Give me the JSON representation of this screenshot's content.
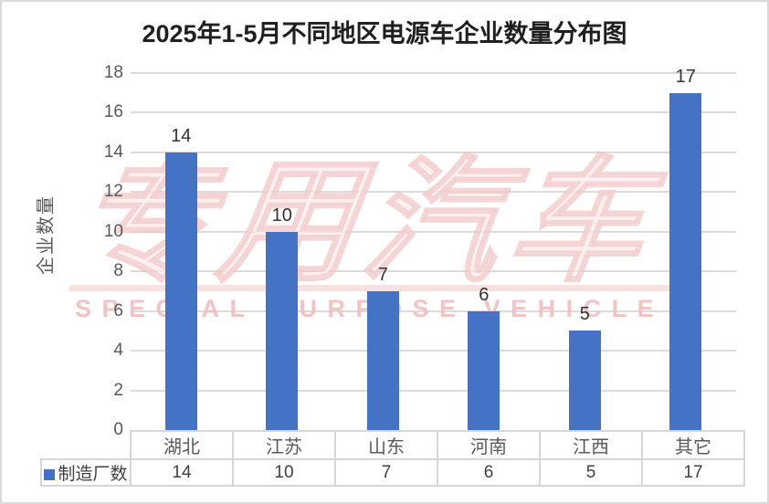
{
  "chart_data": {
    "type": "bar",
    "title": "2025年1-5月不同地区电源车企业数量分布图",
    "categories": [
      "湖北",
      "江苏",
      "山东",
      "河南",
      "江西",
      "其它"
    ],
    "series": [
      {
        "name": "制造厂数",
        "values": [
          14,
          10,
          7,
          6,
          5,
          17
        ]
      }
    ],
    "xlabel": "",
    "ylabel": "企业数量",
    "ylim": [
      0,
      18
    ],
    "ytick_step": 2,
    "grid": true,
    "data_labels": true,
    "legend_position": "bottom-table"
  },
  "watermark": {
    "cn": "专用汽车",
    "en": "SPECIAL PURPOSE VEHICLE"
  },
  "colors": {
    "bar": "#4472C4",
    "gridline": "#DCDCDC",
    "axis_text": "#595959",
    "value_text": "#404040",
    "title_text": "#1f1f1f",
    "table_border": "#D6D6D6",
    "watermark_red": "#F2BABA",
    "frame_border": "#D9D9D9"
  }
}
